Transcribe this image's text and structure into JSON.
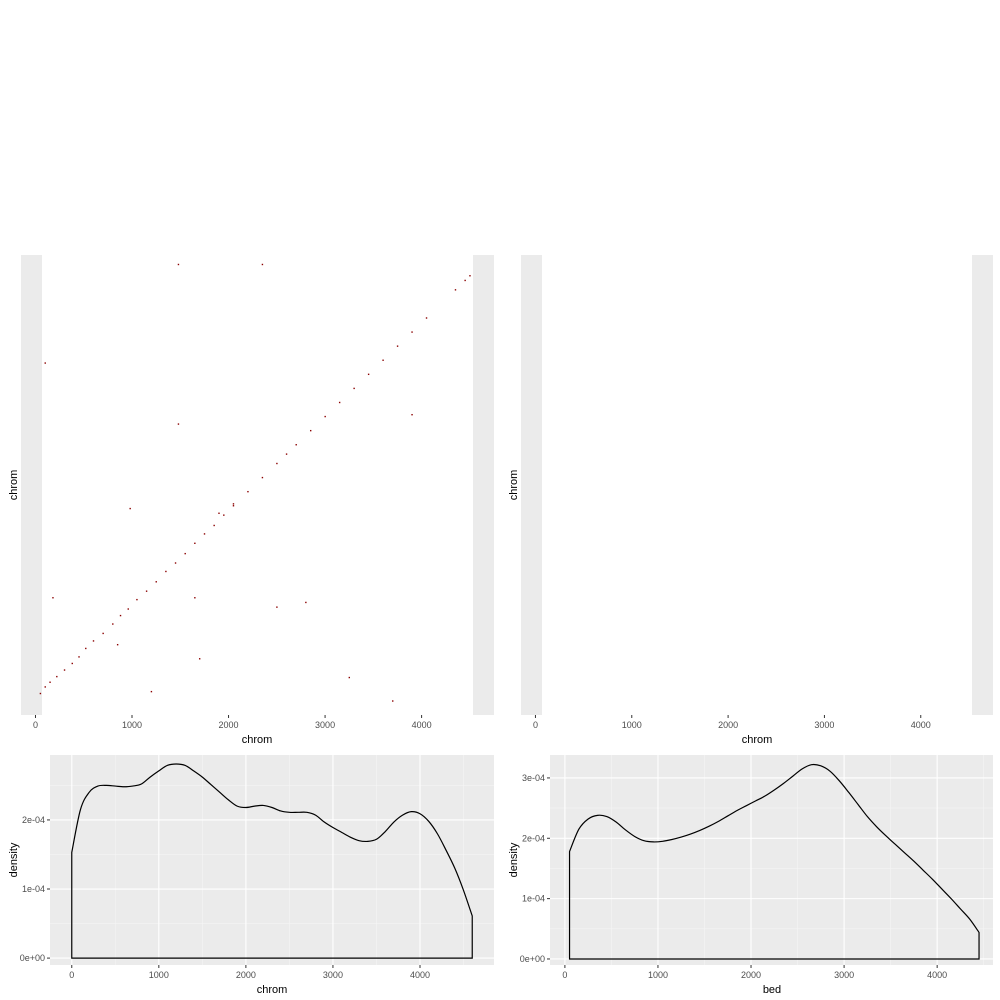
{
  "chart_data": [
    {
      "type": "scatter",
      "panel": "top-left",
      "xlabel": "chrom",
      "ylabel": "chrom",
      "xlim": [
        -150,
        4750
      ],
      "x_ticks": [
        "0",
        "1000",
        "2000",
        "3000",
        "4000"
      ],
      "y_ticks": [],
      "grid": false,
      "point_color": "#8b0000",
      "points": [
        [
          50,
          80
        ],
        [
          100,
          150
        ],
        [
          150,
          200
        ],
        [
          220,
          260
        ],
        [
          300,
          330
        ],
        [
          380,
          400
        ],
        [
          450,
          470
        ],
        [
          520,
          560
        ],
        [
          600,
          640
        ],
        [
          700,
          720
        ],
        [
          800,
          820
        ],
        [
          880,
          910
        ],
        [
          960,
          980
        ],
        [
          1050,
          1080
        ],
        [
          1150,
          1170
        ],
        [
          1250,
          1270
        ],
        [
          1350,
          1380
        ],
        [
          1450,
          1470
        ],
        [
          1550,
          1570
        ],
        [
          1650,
          1680
        ],
        [
          1750,
          1780
        ],
        [
          1850,
          1870
        ],
        [
          1950,
          1980
        ],
        [
          2050,
          2080
        ],
        [
          2200,
          2230
        ],
        [
          2350,
          2380
        ],
        [
          2500,
          2530
        ],
        [
          2600,
          2630
        ],
        [
          2700,
          2730
        ],
        [
          2850,
          2880
        ],
        [
          3000,
          3030
        ],
        [
          3150,
          3180
        ],
        [
          3300,
          3330
        ],
        [
          3450,
          3480
        ],
        [
          3600,
          3630
        ],
        [
          3750,
          3780
        ],
        [
          3900,
          3930
        ],
        [
          4050,
          4080
        ],
        [
          4350,
          4380
        ],
        [
          4450,
          4480
        ],
        [
          4500,
          4530
        ],
        [
          1480,
          4650
        ],
        [
          2350,
          4650
        ],
        [
          100,
          3600
        ],
        [
          1480,
          2950
        ],
        [
          3900,
          3050
        ],
        [
          980,
          2050
        ],
        [
          1900,
          2000
        ],
        [
          2050,
          2100
        ],
        [
          180,
          1100
        ],
        [
          1650,
          1100
        ],
        [
          2500,
          1000
        ],
        [
          2800,
          1050
        ],
        [
          850,
          600
        ],
        [
          1700,
          450
        ],
        [
          3250,
          250
        ],
        [
          1200,
          100
        ],
        [
          3700,
          0
        ]
      ]
    },
    {
      "type": "scatter",
      "panel": "top-right",
      "xlabel": "chrom",
      "ylabel": "chrom",
      "xlim": [
        -150,
        4750
      ],
      "x_ticks": [
        "0",
        "1000",
        "2000",
        "3000",
        "4000"
      ],
      "y_ticks": [],
      "grid": false,
      "points": []
    },
    {
      "type": "area",
      "panel": "bottom-left",
      "xlabel": "chrom",
      "ylabel": "density",
      "xlim": [
        -250,
        4850
      ],
      "ylim": [
        -1e-05,
        0.000294
      ],
      "x_ticks": [
        "0",
        "1000",
        "2000",
        "3000",
        "4000"
      ],
      "y_ticks": [
        "0e+00",
        "1e-04",
        "2e-04"
      ],
      "grid": true,
      "x": [
        0,
        100,
        200,
        300,
        400,
        500,
        600,
        700,
        800,
        900,
        1000,
        1100,
        1200,
        1300,
        1400,
        1500,
        1600,
        1700,
        1800,
        1900,
        2000,
        2100,
        2200,
        2300,
        2400,
        2500,
        2600,
        2700,
        2800,
        2900,
        3000,
        3100,
        3200,
        3300,
        3400,
        3500,
        3600,
        3700,
        3800,
        3900,
        4000,
        4100,
        4200,
        4300,
        4400,
        4500,
        4600
      ],
      "values": [
        0.000153,
        0.000215,
        0.00024,
        0.000249,
        0.00025,
        0.000249,
        0.000248,
        0.000249,
        0.000252,
        0.000262,
        0.000271,
        0.000279,
        0.000281,
        0.000279,
        0.000271,
        0.000262,
        0.000251,
        0.00024,
        0.000229,
        0.00022,
        0.000218,
        0.00022,
        0.000221,
        0.000218,
        0.000213,
        0.000211,
        0.000211,
        0.000211,
        0.000207,
        0.000197,
        0.000189,
        0.000182,
        0.000175,
        0.00017,
        0.000169,
        0.000172,
        0.000183,
        0.000197,
        0.000207,
        0.000212,
        0.000209,
        0.000198,
        0.00018,
        0.000156,
        0.00013,
        9.8e-05,
        6.1e-05
      ]
    },
    {
      "type": "area",
      "panel": "bottom-right",
      "xlabel": "bed",
      "ylabel": "density",
      "xlim": [
        -160,
        4600
      ],
      "ylim": [
        -1e-05,
        0.000338
      ],
      "x_ticks": [
        "0",
        "1000",
        "2000",
        "3000",
        "4000"
      ],
      "y_ticks": [
        "0e+00",
        "1e-04",
        "2e-04",
        "3e-04"
      ],
      "grid": true,
      "x": [
        50,
        150,
        250,
        350,
        450,
        550,
        650,
        750,
        850,
        950,
        1050,
        1150,
        1250,
        1350,
        1450,
        1550,
        1650,
        1750,
        1850,
        1950,
        2050,
        2150,
        2250,
        2350,
        2450,
        2550,
        2650,
        2750,
        2850,
        2950,
        3050,
        3150,
        3250,
        3350,
        3450,
        3550,
        3650,
        3750,
        3850,
        3950,
        4050,
        4150,
        4250,
        4350,
        4450
      ],
      "values": [
        0.000178,
        0.000215,
        0.000232,
        0.000238,
        0.000236,
        0.000227,
        0.000214,
        0.000203,
        0.000196,
        0.000194,
        0.000195,
        0.000198,
        0.000202,
        0.000207,
        0.000213,
        0.00022,
        0.000228,
        0.000237,
        0.000246,
        0.000254,
        0.000262,
        0.00027,
        0.00028,
        0.000291,
        0.000303,
        0.000315,
        0.000322,
        0.00032,
        0.000311,
        0.000295,
        0.000276,
        0.000256,
        0.000236,
        0.000219,
        0.000204,
        0.00019,
        0.000176,
        0.000162,
        0.000147,
        0.000132,
        0.000116,
        0.0001,
        8.3e-05,
        6.6e-05,
        4.4e-05
      ]
    }
  ]
}
